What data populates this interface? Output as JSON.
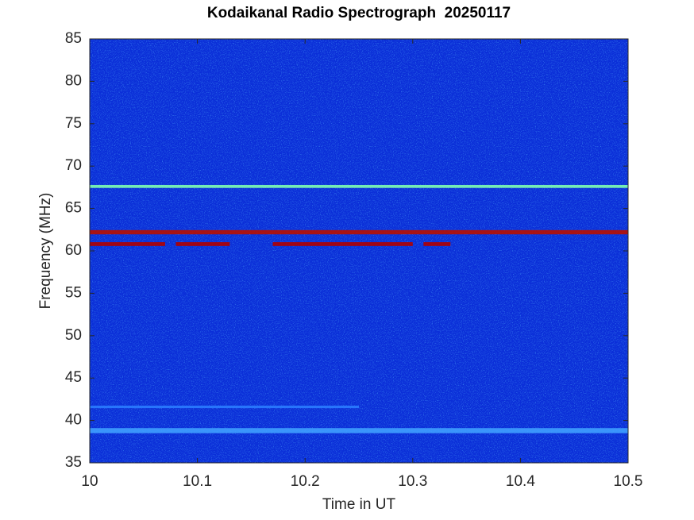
{
  "chart_data": {
    "type": "spectrogram",
    "title": "Kodaikanal Radio Spectrograph  20250117",
    "xlabel": "Time in UT",
    "ylabel": "Frequency (MHz)",
    "xlim": [
      10,
      10.5
    ],
    "xticks": [
      10,
      10.1,
      10.2,
      10.3,
      10.4,
      10.5
    ],
    "ylim": [
      35,
      85
    ],
    "yticks": [
      35,
      40,
      45,
      50,
      55,
      60,
      65,
      70,
      75,
      80,
      85
    ],
    "background": "#0b2fd8",
    "grid": false,
    "bands": [
      {
        "y": 67.6,
        "x": [
          10,
          10.5
        ],
        "width": 0.35,
        "color": "#7fffb0"
      },
      {
        "y": 62.2,
        "x": [
          10,
          10.5
        ],
        "width": 0.5,
        "color": "#b81000"
      },
      {
        "y": 60.8,
        "x": [
          10,
          10.07
        ],
        "width": 0.45,
        "color": "#b00000"
      },
      {
        "y": 60.8,
        "x": [
          10.08,
          10.13
        ],
        "width": 0.45,
        "color": "#b00000"
      },
      {
        "y": 60.8,
        "x": [
          10.17,
          10.3
        ],
        "width": 0.45,
        "color": "#b00000"
      },
      {
        "y": 60.8,
        "x": [
          10.31,
          10.335
        ],
        "width": 0.45,
        "color": "#b00000"
      },
      {
        "y": 38.8,
        "x": [
          10,
          10.5
        ],
        "width": 0.6,
        "color": "#3fa0ff"
      },
      {
        "y": 41.6,
        "x": [
          10,
          10.25
        ],
        "width": 0.3,
        "color": "#2a7cff"
      }
    ]
  }
}
